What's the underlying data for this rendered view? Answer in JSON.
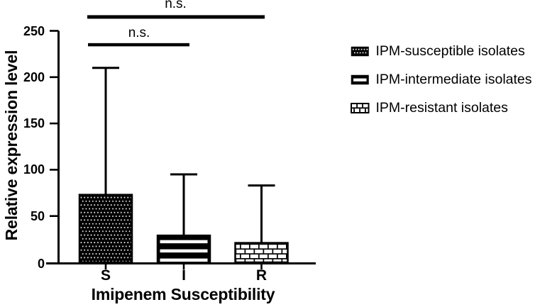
{
  "chart_data": {
    "type": "bar",
    "title": "",
    "xlabel": "Imipenem Susceptibility",
    "ylabel": "Relative expression level",
    "categories": [
      "S",
      "I",
      "R"
    ],
    "values": [
      73,
      29,
      21
    ],
    "error_upper": [
      210,
      95,
      83
    ],
    "ylim": [
      0,
      250
    ],
    "yticks": [
      0,
      50,
      100,
      150,
      200,
      250
    ],
    "grid": false,
    "bar_patterns": [
      "dots",
      "hstripes",
      "bricks"
    ],
    "significance": [
      {
        "label": "n.s.",
        "between": [
          "S",
          "I"
        ],
        "level": 235
      },
      {
        "label": "n.s.",
        "between": [
          "S",
          "R"
        ],
        "level": 265
      }
    ]
  },
  "legend": {
    "position": "right",
    "items": [
      {
        "label": "IPM-susceptible isolates",
        "pattern": "dots"
      },
      {
        "label": "IPM-intermediate isolates",
        "pattern": "hstripes"
      },
      {
        "label": "IPM-resistant isolates",
        "pattern": "bricks"
      }
    ]
  },
  "colors": {
    "foreground": "#000000",
    "background": "#ffffff"
  }
}
